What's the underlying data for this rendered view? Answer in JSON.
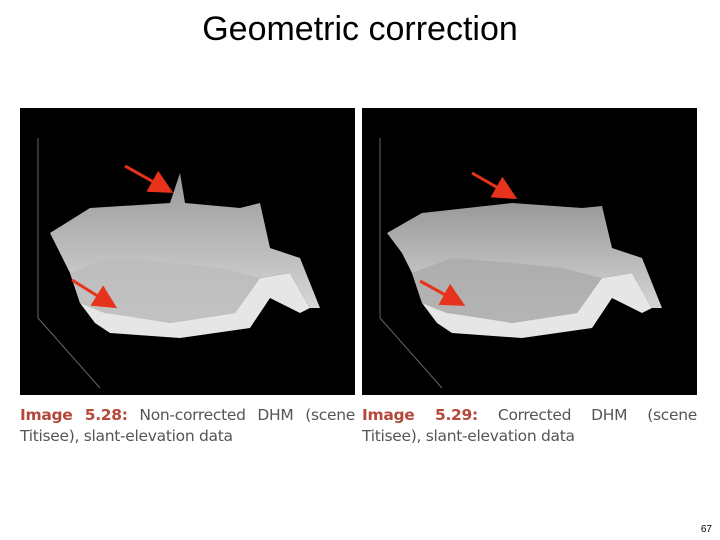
{
  "header": {
    "title": "Geometric correction"
  },
  "figures": [
    {
      "label": "Image 5.28:",
      "caption": "Non-corrected DHM (scene Titisee), slant-elevation data"
    },
    {
      "label": "Image 5.29:",
      "caption": "Corrected DHM (scene Titisee), slant-elevation data"
    }
  ],
  "footer": {
    "page_number": "67"
  }
}
